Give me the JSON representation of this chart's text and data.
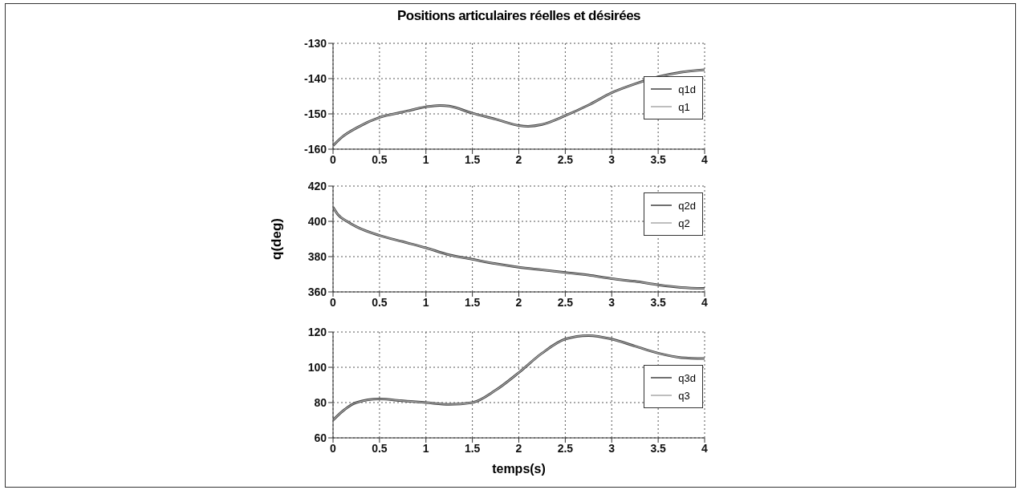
{
  "chart_data": [
    {
      "type": "line",
      "title": "Positions articulaires réelles et désirées",
      "x": [
        0,
        0.1,
        0.25,
        0.5,
        0.75,
        1,
        1.15,
        1.25,
        1.5,
        1.75,
        2,
        2.1,
        2.25,
        2.5,
        2.75,
        3,
        3.25,
        3.5,
        3.75,
        4
      ],
      "xlim": [
        0,
        4
      ],
      "xticks": [
        0,
        0.5,
        1,
        1.5,
        2,
        2.5,
        3,
        3.5,
        4
      ],
      "ylim": [
        -160,
        -130
      ],
      "yticks": [
        -160,
        -150,
        -140,
        -130
      ],
      "grid": true,
      "legend": "right",
      "line_style": "solid",
      "series": [
        {
          "name": "q1d",
          "color": "#404040",
          "values": [
            -159,
            -156.5,
            -154,
            -151,
            -149.5,
            -148,
            -147.6,
            -147.8,
            -149.8,
            -151.5,
            -153.3,
            -153.5,
            -153,
            -150.5,
            -147.5,
            -144,
            -141.5,
            -139.5,
            -138.2,
            -137.5
          ]
        },
        {
          "name": "q1",
          "color": "#a8a8a8",
          "values": [
            -159,
            -156.5,
            -154,
            -151,
            -149.5,
            -148,
            -147.6,
            -147.8,
            -149.8,
            -151.5,
            -153.3,
            -153.5,
            -153,
            -150.5,
            -147.5,
            -144,
            -141.5,
            -139.5,
            -138.2,
            -137.5
          ]
        }
      ]
    },
    {
      "type": "line",
      "ylabel": "q(deg)",
      "x": [
        0,
        0.05,
        0.15,
        0.25,
        0.5,
        0.75,
        1,
        1.25,
        1.5,
        1.75,
        2,
        2.25,
        2.5,
        2.75,
        3,
        3.25,
        3.5,
        3.75,
        4
      ],
      "xlim": [
        0,
        4
      ],
      "xticks": [
        0,
        0.5,
        1,
        1.5,
        2,
        2.5,
        3,
        3.5,
        4
      ],
      "ylim": [
        360,
        420
      ],
      "yticks": [
        360,
        380,
        400,
        420
      ],
      "grid": true,
      "legend": "top right",
      "line_style": "solid",
      "series": [
        {
          "name": "q2d",
          "color": "#404040",
          "values": [
            408,
            404,
            400,
            397,
            392,
            388.5,
            385,
            381,
            378.5,
            376,
            374,
            372.5,
            371,
            369.5,
            367.5,
            366,
            364,
            362.5,
            362
          ]
        },
        {
          "name": "q2",
          "color": "#a8a8a8",
          "values": [
            408,
            404,
            400,
            397,
            392,
            388.5,
            385,
            381,
            378.5,
            376,
            374,
            372.5,
            371,
            369.5,
            367.5,
            366,
            364,
            362.5,
            362
          ]
        }
      ]
    },
    {
      "type": "line",
      "xlabel": "temps(s)",
      "x": [
        0,
        0.1,
        0.25,
        0.5,
        0.75,
        1,
        1.25,
        1.5,
        1.75,
        2,
        2.25,
        2.5,
        2.75,
        3,
        3.25,
        3.5,
        3.75,
        4
      ],
      "xlim": [
        0,
        4
      ],
      "xticks": [
        0,
        0.5,
        1,
        1.5,
        2,
        2.5,
        3,
        3.5,
        4
      ],
      "ylim": [
        60,
        120
      ],
      "yticks": [
        60,
        80,
        100,
        120
      ],
      "grid": true,
      "legend": "right",
      "line_style": "solid",
      "series": [
        {
          "name": "q3d",
          "color": "#404040",
          "values": [
            70,
            75,
            80,
            82,
            81,
            80,
            79,
            80,
            87,
            97,
            108,
            116,
            118,
            116,
            112,
            108,
            105.5,
            105
          ]
        },
        {
          "name": "q3",
          "color": "#a8a8a8",
          "values": [
            70,
            75,
            80,
            82,
            81,
            80,
            79,
            80,
            87,
            97,
            108,
            116,
            118,
            116,
            112,
            108,
            105.5,
            105
          ]
        }
      ]
    }
  ]
}
